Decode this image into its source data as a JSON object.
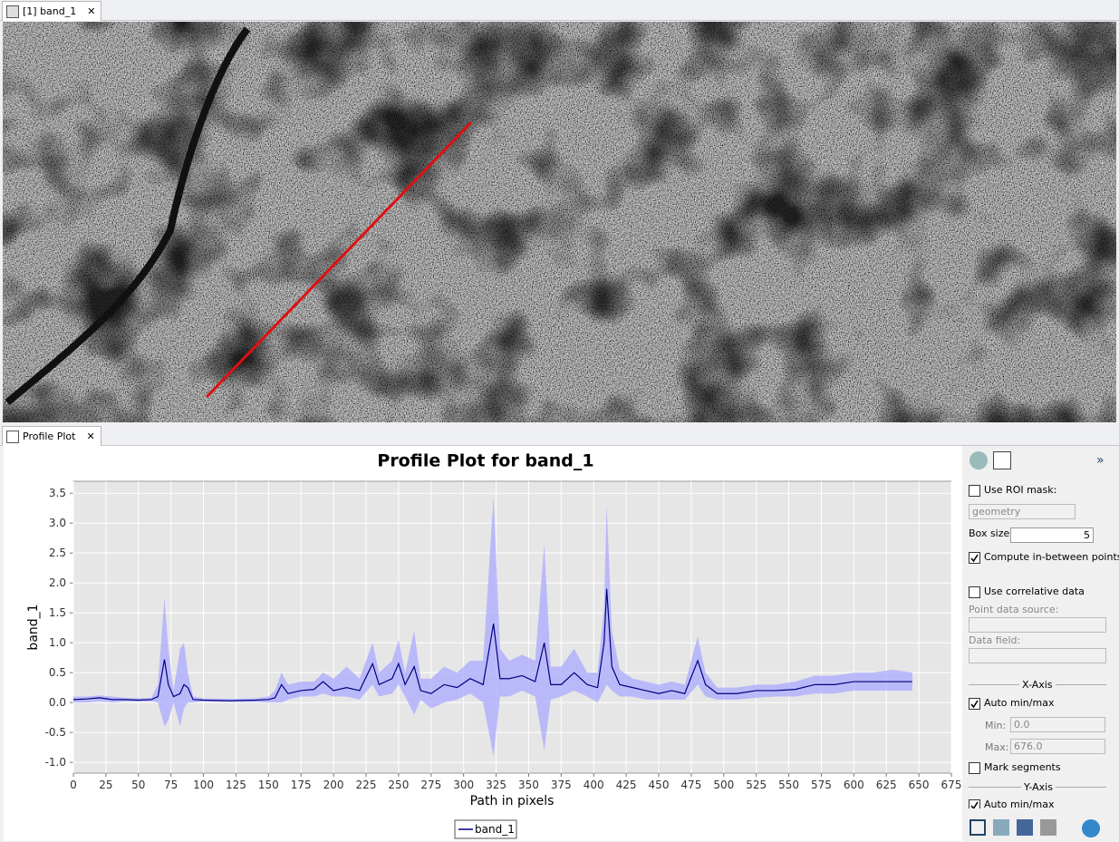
{
  "tabs": {
    "image": "[1] band_1",
    "plot": "Profile Plot"
  },
  "panel": {
    "use_roi_mask": {
      "label": "Use ROI mask:",
      "checked": false
    },
    "mask": "geometry",
    "box_size": {
      "label": "Box size:",
      "value": "5"
    },
    "compute_between": {
      "label": "Compute in-between points",
      "checked": true
    },
    "use_correlative": {
      "label": "Use correlative data",
      "checked": false
    },
    "point_source": "Point data source:",
    "data_field": "Data field:",
    "x_axis": {
      "title": "X-Axis",
      "auto": {
        "label": "Auto min/max",
        "checked": true
      },
      "min_label": "Min:",
      "min": "0.0",
      "max_label": "Max:",
      "max": "676.0"
    },
    "mark_segments": {
      "label": "Mark segments",
      "checked": false
    },
    "y_axis": {
      "title": "Y-Axis",
      "auto": {
        "label": "Auto min/max",
        "checked": true
      }
    }
  },
  "chart_data": {
    "type": "line",
    "title": "Profile Plot for band_1",
    "x_label": "Path in pixels",
    "y_label": "band_1",
    "xlim": [
      0,
      675
    ],
    "ylim": [
      -1.18,
      3.7
    ],
    "xticks": [
      0,
      25,
      50,
      75,
      100,
      125,
      150,
      175,
      200,
      225,
      250,
      275,
      300,
      325,
      350,
      375,
      400,
      425,
      450,
      475,
      500,
      525,
      550,
      575,
      600,
      625,
      650,
      675
    ],
    "yticks": [
      {
        "value": -1,
        "label": "-1.0"
      },
      -0.5,
      {
        "value": 0,
        "label": "0.0"
      },
      0.5,
      {
        "value": 1,
        "label": "1.0"
      },
      1.5,
      {
        "value": 2,
        "label": "2.0"
      },
      2.5,
      {
        "value": 3,
        "label": "3.0"
      },
      3.5
    ],
    "grid": true,
    "x": [
      0,
      10,
      20,
      30,
      40,
      50,
      60,
      65,
      70,
      73,
      77,
      82,
      85,
      88,
      92,
      100,
      120,
      140,
      150,
      155,
      160,
      165,
      175,
      185,
      192,
      200,
      210,
      220,
      230,
      235,
      245,
      250,
      255,
      262,
      267,
      275,
      285,
      295,
      305,
      315,
      323,
      328,
      335,
      345,
      355,
      362,
      367,
      375,
      385,
      395,
      403,
      408,
      410,
      414,
      420,
      430,
      440,
      450,
      460,
      470,
      480,
      486,
      495,
      510,
      525,
      540,
      555,
      570,
      585,
      600,
      615,
      630,
      645
    ],
    "series": [
      {
        "name": "band_1",
        "color": "#000080",
        "band_color": "#aaaaff",
        "values": [
          0.05,
          0.06,
          0.08,
          0.05,
          0.05,
          0.04,
          0.05,
          0.1,
          0.72,
          0.3,
          0.1,
          0.15,
          0.3,
          0.25,
          0.05,
          0.04,
          0.03,
          0.04,
          0.05,
          0.08,
          0.3,
          0.15,
          0.2,
          0.22,
          0.35,
          0.2,
          0.25,
          0.2,
          0.65,
          0.3,
          0.4,
          0.65,
          0.3,
          0.6,
          0.2,
          0.15,
          0.3,
          0.25,
          0.4,
          0.3,
          1.32,
          0.4,
          0.4,
          0.45,
          0.35,
          1.0,
          0.3,
          0.3,
          0.5,
          0.3,
          0.25,
          1.0,
          1.9,
          0.6,
          0.3,
          0.25,
          0.2,
          0.15,
          0.2,
          0.15,
          0.7,
          0.3,
          0.15,
          0.15,
          0.2,
          0.2,
          0.22,
          0.3,
          0.3,
          0.35,
          0.35,
          0.35,
          0.35
        ],
        "lower": [
          0,
          0,
          0.02,
          0,
          0.02,
          0.02,
          0.02,
          0,
          -0.4,
          -0.3,
          0,
          -0.4,
          -0.1,
          0,
          0,
          0.02,
          0.01,
          0.01,
          0,
          0,
          0,
          0.05,
          0.1,
          0.1,
          0.15,
          0.1,
          0.1,
          0.05,
          0.3,
          0.1,
          0.15,
          0.3,
          0.1,
          -0.2,
          0.05,
          -0.1,
          0,
          0.05,
          0.15,
          0,
          -0.9,
          0.1,
          0.1,
          0.2,
          0.1,
          -0.8,
          0.05,
          0.1,
          0.2,
          0.1,
          0,
          0.2,
          0.3,
          0.2,
          0.1,
          0.1,
          0.05,
          0.05,
          0.05,
          0.05,
          0.3,
          0.1,
          0.05,
          0.05,
          0.08,
          0.1,
          0.1,
          0.15,
          0.15,
          0.2,
          0.2,
          0.2,
          0.2
        ],
        "upper": [
          0.1,
          0.1,
          0.12,
          0.1,
          0.08,
          0.07,
          0.08,
          0.3,
          1.75,
          0.9,
          0.2,
          0.9,
          1.0,
          0.5,
          0.1,
          0.07,
          0.06,
          0.07,
          0.1,
          0.2,
          0.5,
          0.3,
          0.35,
          0.35,
          0.5,
          0.4,
          0.6,
          0.4,
          1.0,
          0.5,
          0.7,
          1.05,
          0.5,
          1.2,
          0.4,
          0.4,
          0.6,
          0.5,
          0.7,
          0.7,
          3.45,
          0.9,
          0.7,
          0.8,
          0.7,
          2.65,
          0.6,
          0.6,
          0.9,
          0.5,
          0.5,
          1.6,
          3.3,
          1.2,
          0.55,
          0.4,
          0.35,
          0.3,
          0.35,
          0.3,
          1.1,
          0.5,
          0.25,
          0.25,
          0.3,
          0.3,
          0.35,
          0.45,
          0.45,
          0.5,
          0.5,
          0.55,
          0.5
        ]
      }
    ]
  }
}
